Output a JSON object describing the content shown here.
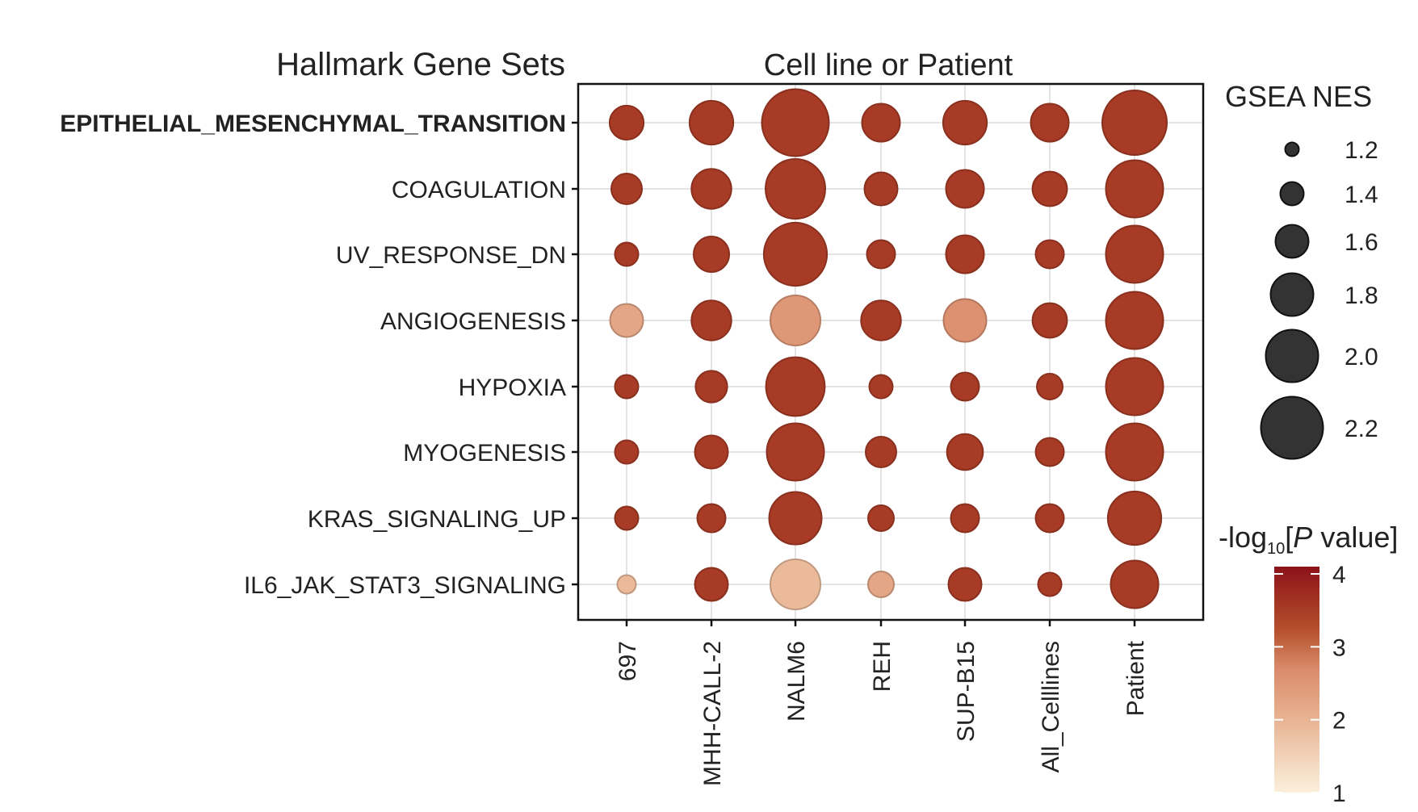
{
  "chart_data": {
    "type": "bubble-dot-plot",
    "y_axis_title": "Hallmark Gene Sets",
    "x_axis_title": "Cell line or Patient",
    "categories_x": [
      "697",
      "MHH-CALL-2",
      "NALM6",
      "REH",
      "SUP-B15",
      "All_Celllines",
      "Patient"
    ],
    "categories_y": [
      "EPITHELIAL_MESENCHYMAL_TRANSITION",
      "COAGULATION",
      "UV_RESPONSE_DN",
      "ANGIOGENESIS",
      "HYPOXIA",
      "MYOGENESIS",
      "KRAS_SIGNALING_UP",
      "IL6_JAK_STAT3_SIGNALING"
    ],
    "size_legend": {
      "title": "GSEA NES",
      "breaks": [
        1.2,
        1.4,
        1.6,
        1.8,
        2.0,
        2.2
      ],
      "labels": [
        "1.2",
        "1.4",
        "1.6",
        "1.8",
        "2.0",
        "2.2"
      ]
    },
    "color_legend": {
      "title_prefix": "-log",
      "title_sub": "10",
      "title_bracket_open": "[",
      "title_italic": "P",
      "title_suffix": " value]",
      "ticks": [
        1,
        2,
        3,
        4
      ],
      "tick_labels": [
        "1",
        "2",
        "3",
        "4"
      ],
      "range": [
        1,
        4.1
      ],
      "low_color": "#fbf0dc",
      "mid_color": "#d98a6a",
      "high_color": "#8c1219"
    },
    "legend_position": "right",
    "grid": true,
    "points": [
      {
        "set": "EPITHELIAL_MESENCHYMAL_TRANSITION",
        "x": "697",
        "nes": 1.62,
        "logp": 3.5
      },
      {
        "set": "EPITHELIAL_MESENCHYMAL_TRANSITION",
        "x": "MHH-CALL-2",
        "nes": 1.82,
        "logp": 3.5
      },
      {
        "set": "EPITHELIAL_MESENCHYMAL_TRANSITION",
        "x": "NALM6",
        "nes": 2.3,
        "logp": 3.5
      },
      {
        "set": "EPITHELIAL_MESENCHYMAL_TRANSITION",
        "x": "REH",
        "nes": 1.7,
        "logp": 3.5
      },
      {
        "set": "EPITHELIAL_MESENCHYMAL_TRANSITION",
        "x": "SUP-B15",
        "nes": 1.82,
        "logp": 3.5
      },
      {
        "set": "EPITHELIAL_MESENCHYMAL_TRANSITION",
        "x": "All_Celllines",
        "nes": 1.7,
        "logp": 3.5
      },
      {
        "set": "EPITHELIAL_MESENCHYMAL_TRANSITION",
        "x": "Patient",
        "nes": 2.25,
        "logp": 3.5
      },
      {
        "set": "COAGULATION",
        "x": "697",
        "nes": 1.55,
        "logp": 3.5
      },
      {
        "set": "COAGULATION",
        "x": "MHH-CALL-2",
        "nes": 1.74,
        "logp": 3.5
      },
      {
        "set": "COAGULATION",
        "x": "NALM6",
        "nes": 2.15,
        "logp": 3.5
      },
      {
        "set": "COAGULATION",
        "x": "REH",
        "nes": 1.6,
        "logp": 3.5
      },
      {
        "set": "COAGULATION",
        "x": "SUP-B15",
        "nes": 1.7,
        "logp": 3.5
      },
      {
        "set": "COAGULATION",
        "x": "All_Celllines",
        "nes": 1.63,
        "logp": 3.5
      },
      {
        "set": "COAGULATION",
        "x": "Patient",
        "nes": 2.1,
        "logp": 3.5
      },
      {
        "set": "UV_RESPONSE_DN",
        "x": "697",
        "nes": 1.4,
        "logp": 3.5
      },
      {
        "set": "UV_RESPONSE_DN",
        "x": "MHH-CALL-2",
        "nes": 1.65,
        "logp": 3.5
      },
      {
        "set": "UV_RESPONSE_DN",
        "x": "NALM6",
        "nes": 2.22,
        "logp": 3.5
      },
      {
        "set": "UV_RESPONSE_DN",
        "x": "REH",
        "nes": 1.5,
        "logp": 3.5
      },
      {
        "set": "UV_RESPONSE_DN",
        "x": "SUP-B15",
        "nes": 1.7,
        "logp": 3.5
      },
      {
        "set": "UV_RESPONSE_DN",
        "x": "All_Celllines",
        "nes": 1.5,
        "logp": 3.5
      },
      {
        "set": "UV_RESPONSE_DN",
        "x": "Patient",
        "nes": 2.1,
        "logp": 3.5
      },
      {
        "set": "ANGIOGENESIS",
        "x": "697",
        "nes": 1.6,
        "logp": 2.2
      },
      {
        "set": "ANGIOGENESIS",
        "x": "MHH-CALL-2",
        "nes": 1.74,
        "logp": 3.5
      },
      {
        "set": "ANGIOGENESIS",
        "x": "NALM6",
        "nes": 1.95,
        "logp": 2.4
      },
      {
        "set": "ANGIOGENESIS",
        "x": "REH",
        "nes": 1.74,
        "logp": 3.5
      },
      {
        "set": "ANGIOGENESIS",
        "x": "SUP-B15",
        "nes": 1.8,
        "logp": 2.5
      },
      {
        "set": "ANGIOGENESIS",
        "x": "All_Celllines",
        "nes": 1.63,
        "logp": 3.5
      },
      {
        "set": "ANGIOGENESIS",
        "x": "Patient",
        "nes": 2.1,
        "logp": 3.5
      },
      {
        "set": "HYPOXIA",
        "x": "697",
        "nes": 1.4,
        "logp": 3.5
      },
      {
        "set": "HYPOXIA",
        "x": "MHH-CALL-2",
        "nes": 1.57,
        "logp": 3.5
      },
      {
        "set": "HYPOXIA",
        "x": "NALM6",
        "nes": 2.13,
        "logp": 3.5
      },
      {
        "set": "HYPOXIA",
        "x": "REH",
        "nes": 1.4,
        "logp": 3.5
      },
      {
        "set": "HYPOXIA",
        "x": "SUP-B15",
        "nes": 1.5,
        "logp": 3.5
      },
      {
        "set": "HYPOXIA",
        "x": "All_Celllines",
        "nes": 1.45,
        "logp": 3.5
      },
      {
        "set": "HYPOXIA",
        "x": "Patient",
        "nes": 2.1,
        "logp": 3.5
      },
      {
        "set": "MYOGENESIS",
        "x": "697",
        "nes": 1.4,
        "logp": 3.5
      },
      {
        "set": "MYOGENESIS",
        "x": "MHH-CALL-2",
        "nes": 1.6,
        "logp": 3.5
      },
      {
        "set": "MYOGENESIS",
        "x": "NALM6",
        "nes": 2.1,
        "logp": 3.5
      },
      {
        "set": "MYOGENESIS",
        "x": "REH",
        "nes": 1.55,
        "logp": 3.5
      },
      {
        "set": "MYOGENESIS",
        "x": "SUP-B15",
        "nes": 1.66,
        "logp": 3.5
      },
      {
        "set": "MYOGENESIS",
        "x": "All_Celllines",
        "nes": 1.5,
        "logp": 3.5
      },
      {
        "set": "MYOGENESIS",
        "x": "Patient",
        "nes": 2.1,
        "logp": 3.5
      },
      {
        "set": "KRAS_SIGNALING_UP",
        "x": "697",
        "nes": 1.4,
        "logp": 3.5
      },
      {
        "set": "KRAS_SIGNALING_UP",
        "x": "MHH-CALL-2",
        "nes": 1.5,
        "logp": 3.5
      },
      {
        "set": "KRAS_SIGNALING_UP",
        "x": "NALM6",
        "nes": 2.0,
        "logp": 3.5
      },
      {
        "set": "KRAS_SIGNALING_UP",
        "x": "REH",
        "nes": 1.45,
        "logp": 3.5
      },
      {
        "set": "KRAS_SIGNALING_UP",
        "x": "SUP-B15",
        "nes": 1.5,
        "logp": 3.5
      },
      {
        "set": "KRAS_SIGNALING_UP",
        "x": "All_Celllines",
        "nes": 1.5,
        "logp": 3.5
      },
      {
        "set": "KRAS_SIGNALING_UP",
        "x": "Patient",
        "nes": 2.02,
        "logp": 3.5
      },
      {
        "set": "IL6_JAK_STAT3_SIGNALING",
        "x": "697",
        "nes": 1.3,
        "logp": 1.9
      },
      {
        "set": "IL6_JAK_STAT3_SIGNALING",
        "x": "MHH-CALL-2",
        "nes": 1.6,
        "logp": 3.5
      },
      {
        "set": "IL6_JAK_STAT3_SIGNALING",
        "x": "NALM6",
        "nes": 1.95,
        "logp": 1.9
      },
      {
        "set": "IL6_JAK_STAT3_SIGNALING",
        "x": "REH",
        "nes": 1.45,
        "logp": 2.2
      },
      {
        "set": "IL6_JAK_STAT3_SIGNALING",
        "x": "SUP-B15",
        "nes": 1.6,
        "logp": 3.5
      },
      {
        "set": "IL6_JAK_STAT3_SIGNALING",
        "x": "All_Celllines",
        "nes": 1.4,
        "logp": 3.5
      },
      {
        "set": "IL6_JAK_STAT3_SIGNALING",
        "x": "Patient",
        "nes": 1.9,
        "logp": 3.5
      }
    ]
  }
}
